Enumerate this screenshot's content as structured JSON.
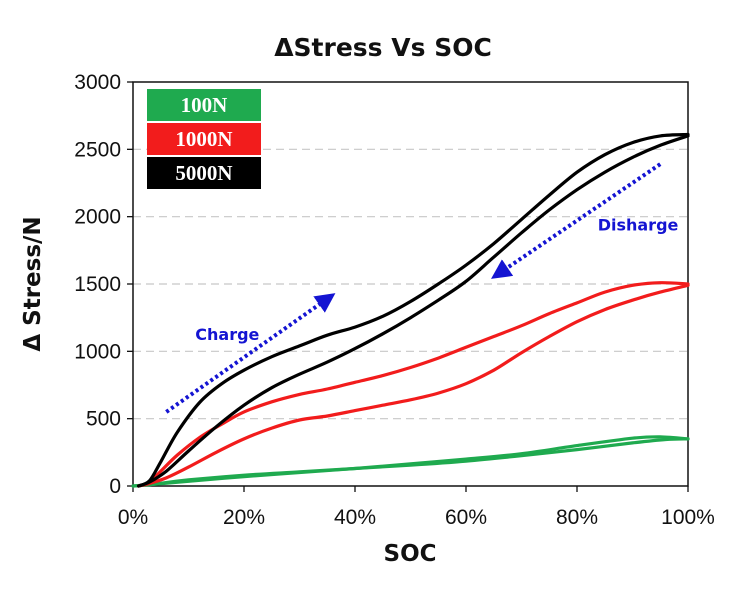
{
  "chart_data": {
    "type": "line",
    "title": "ΔStress Vs SOC",
    "xlabel": "SOC",
    "ylabel": "Δ Stress/N",
    "xlim": [
      0,
      100
    ],
    "ylim": [
      0,
      3000
    ],
    "x_ticks": [
      "0%",
      "20%",
      "40%",
      "60%",
      "80%",
      "100%"
    ],
    "x_tick_values": [
      0,
      20,
      40,
      60,
      80,
      100
    ],
    "y_ticks": [
      "0",
      "500",
      "1000",
      "1500",
      "2000",
      "2500",
      "3000"
    ],
    "y_tick_values": [
      0,
      500,
      1000,
      1500,
      2000,
      2500,
      3000
    ],
    "grid": "horizontal dashed",
    "legend_position": "top-left",
    "series": [
      {
        "name": "100N",
        "color": "#1faa4f",
        "charge": {
          "x": [
            0,
            3,
            10,
            20,
            30,
            40,
            50,
            60,
            70,
            80,
            90,
            96,
            100
          ],
          "y": [
            0,
            10,
            45,
            80,
            105,
            130,
            155,
            185,
            225,
            270,
            320,
            345,
            350
          ]
        },
        "discharge": {
          "x": [
            100,
            95,
            90,
            80,
            70,
            60,
            50,
            40,
            30,
            20,
            10,
            3,
            0
          ],
          "y": [
            350,
            365,
            355,
            300,
            240,
            200,
            165,
            130,
            100,
            70,
            35,
            10,
            0
          ]
        }
      },
      {
        "name": "1000N",
        "color": "#f21c1c",
        "charge": {
          "x": [
            1,
            3,
            5,
            8,
            12,
            16,
            20,
            25,
            30,
            35,
            40,
            45,
            50,
            55,
            60,
            65,
            70,
            75,
            80,
            85,
            90,
            95,
            100
          ],
          "y": [
            0,
            30,
            110,
            230,
            360,
            460,
            550,
            625,
            680,
            720,
            770,
            820,
            880,
            950,
            1030,
            1110,
            1190,
            1280,
            1360,
            1440,
            1490,
            1510,
            1500
          ]
        },
        "discharge": {
          "x": [
            100,
            95,
            90,
            85,
            80,
            75,
            70,
            65,
            60,
            55,
            50,
            45,
            40,
            35,
            30,
            25,
            20,
            15,
            10,
            6,
            3,
            1
          ],
          "y": [
            1490,
            1440,
            1380,
            1310,
            1220,
            1110,
            990,
            860,
            760,
            690,
            640,
            600,
            560,
            520,
            490,
            430,
            350,
            250,
            140,
            60,
            20,
            0
          ]
        }
      },
      {
        "name": "5000N",
        "color": "#000000",
        "charge": {
          "x": [
            1,
            3,
            5,
            8,
            12,
            16,
            20,
            25,
            30,
            35,
            40,
            45,
            50,
            55,
            60,
            65,
            70,
            75,
            80,
            85,
            90,
            95,
            100
          ],
          "y": [
            0,
            40,
            180,
            400,
            620,
            760,
            860,
            960,
            1040,
            1120,
            1180,
            1260,
            1370,
            1500,
            1640,
            1800,
            1980,
            2160,
            2330,
            2460,
            2550,
            2600,
            2610
          ]
        },
        "discharge": {
          "x": [
            100,
            95,
            90,
            85,
            80,
            75,
            70,
            65,
            60,
            55,
            50,
            45,
            40,
            35,
            30,
            25,
            20,
            15,
            10,
            6,
            3,
            1
          ],
          "y": [
            2600,
            2530,
            2440,
            2330,
            2200,
            2050,
            1880,
            1700,
            1520,
            1380,
            1250,
            1130,
            1020,
            920,
            830,
            730,
            600,
            440,
            260,
            110,
            30,
            0
          ]
        }
      }
    ],
    "annotations": [
      {
        "text": "Charge",
        "x": 17,
        "y": 1130,
        "arrow_from": [
          6,
          550
        ],
        "arrow_to": [
          35,
          1390
        ]
      },
      {
        "text": "Disharge",
        "x": 91,
        "y": 1940,
        "arrow_from": [
          95,
          2390
        ],
        "arrow_to": [
          66,
          1580
        ]
      }
    ]
  }
}
